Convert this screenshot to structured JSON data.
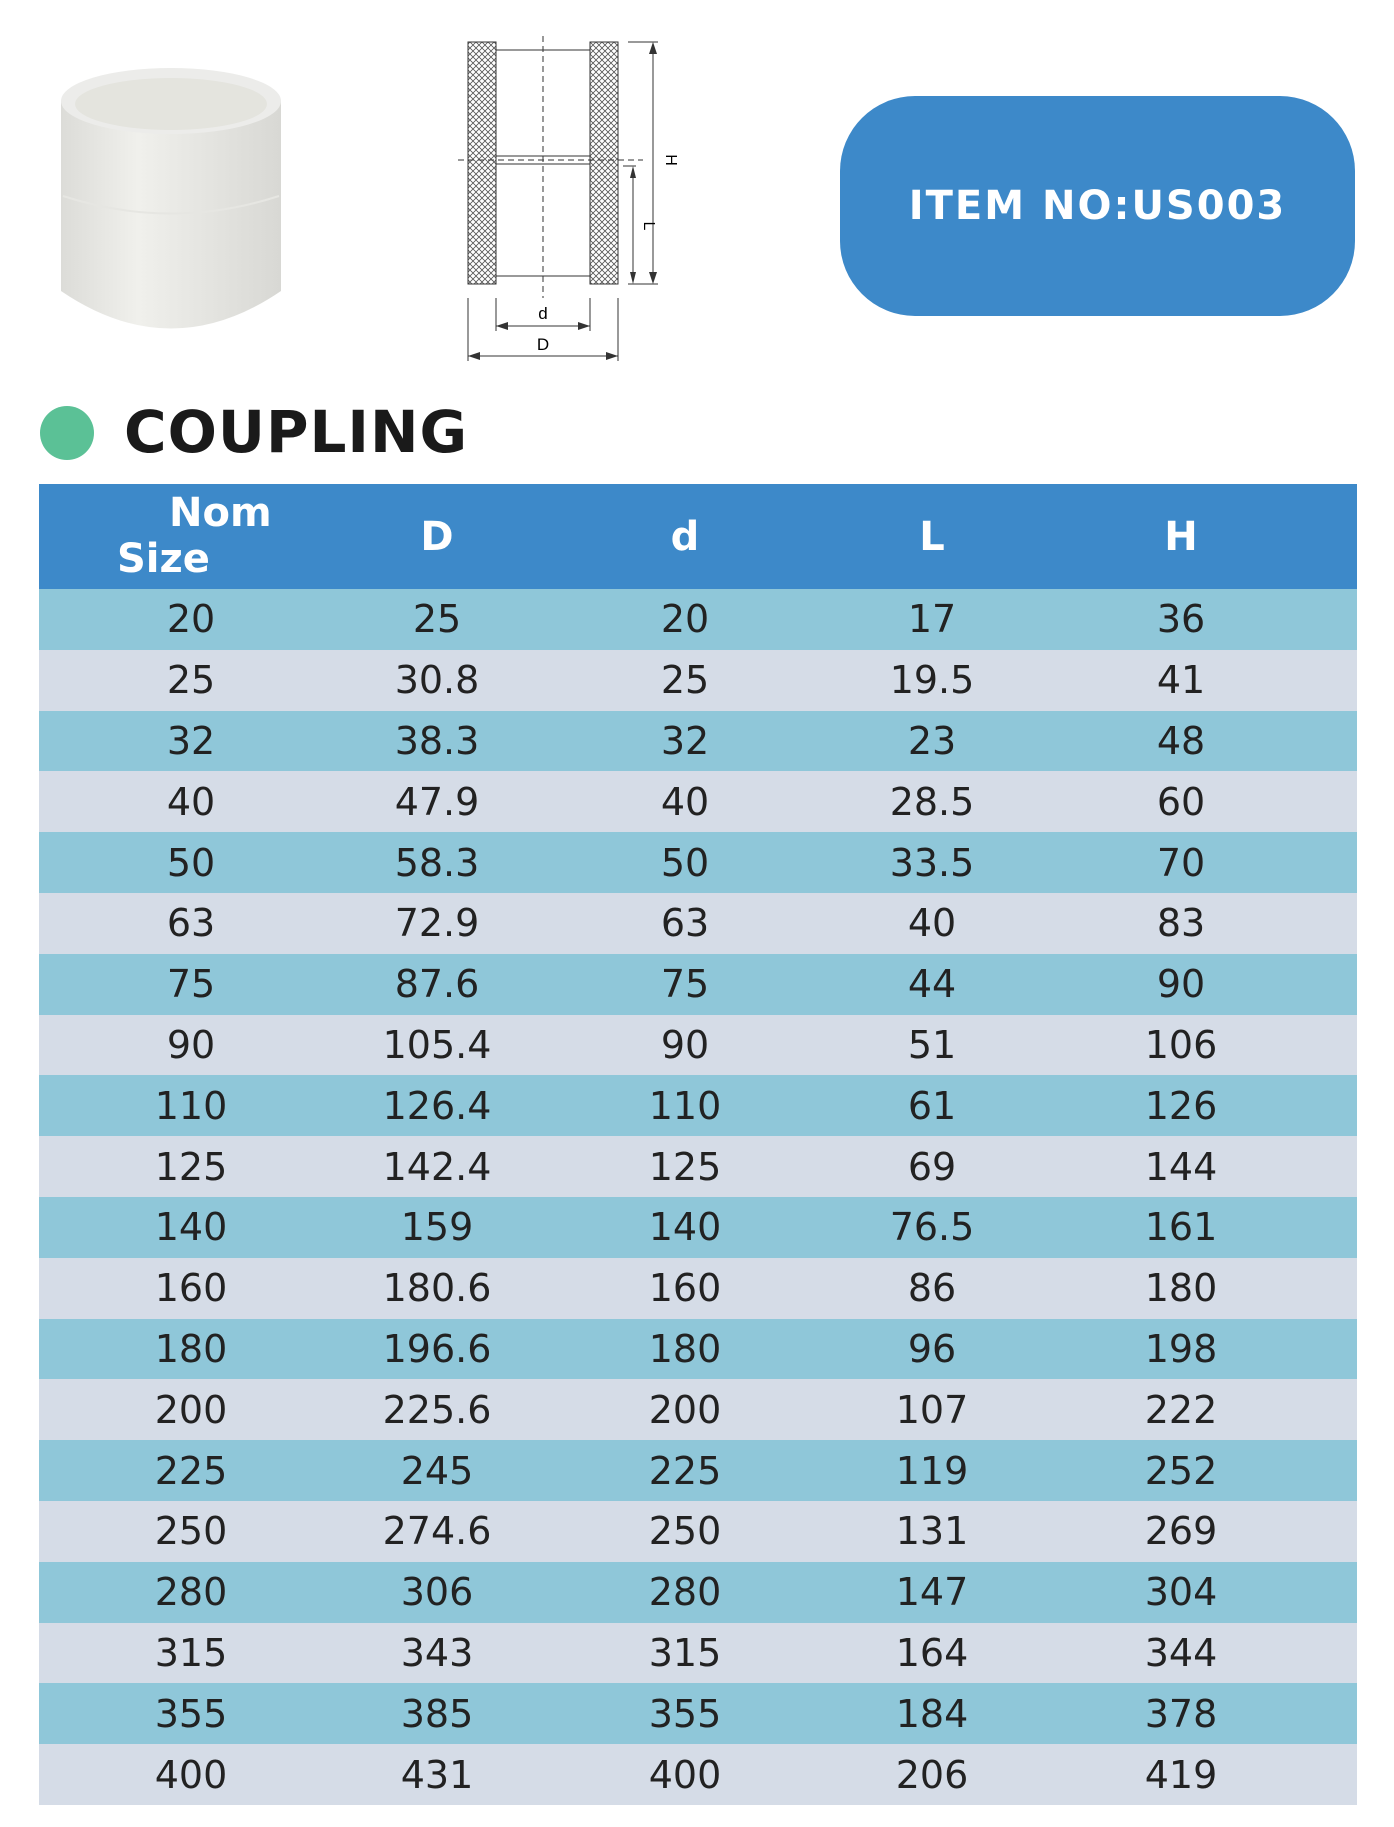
{
  "item": {
    "label": "ITEM NO:US003"
  },
  "title": "COUPLING",
  "diagram": {
    "labels": {
      "d": "d",
      "D": "D",
      "L": "L",
      "H": "H"
    }
  },
  "colors": {
    "header": "#3d89c9",
    "row_odd": "#8fc7d9",
    "row_even": "#d5dce7",
    "dot": "#5bc196"
  },
  "table": {
    "headers": {
      "nom": "Nom",
      "size": "Size",
      "D": "D",
      "d": "d",
      "L": "L",
      "H": "H"
    },
    "rows": [
      [
        "20",
        "25",
        "20",
        "17",
        "36"
      ],
      [
        "25",
        "30.8",
        "25",
        "19.5",
        "41"
      ],
      [
        "32",
        "38.3",
        "32",
        "23",
        "48"
      ],
      [
        "40",
        "47.9",
        "40",
        "28.5",
        "60"
      ],
      [
        "50",
        "58.3",
        "50",
        "33.5",
        "70"
      ],
      [
        "63",
        "72.9",
        "63",
        "40",
        "83"
      ],
      [
        "75",
        "87.6",
        "75",
        "44",
        "90"
      ],
      [
        "90",
        "105.4",
        "90",
        "51",
        "106"
      ],
      [
        "110",
        "126.4",
        "110",
        "61",
        "126"
      ],
      [
        "125",
        "142.4",
        "125",
        "69",
        "144"
      ],
      [
        "140",
        "159",
        "140",
        "76.5",
        "161"
      ],
      [
        "160",
        "180.6",
        "160",
        "86",
        "180"
      ],
      [
        "180",
        "196.6",
        "180",
        "96",
        "198"
      ],
      [
        "200",
        "225.6",
        "200",
        "107",
        "222"
      ],
      [
        "225",
        "245",
        "225",
        "119",
        "252"
      ],
      [
        "250",
        "274.6",
        "250",
        "131",
        "269"
      ],
      [
        "280",
        "306",
        "280",
        "147",
        "304"
      ],
      [
        "315",
        "343",
        "315",
        "164",
        "344"
      ],
      [
        "355",
        "385",
        "355",
        "184",
        "378"
      ],
      [
        "400",
        "431",
        "400",
        "206",
        "419"
      ]
    ]
  }
}
